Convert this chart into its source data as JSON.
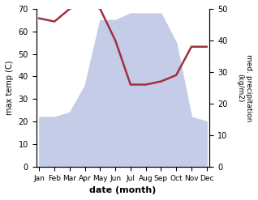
{
  "months": [
    "Jan",
    "Feb",
    "Mar",
    "Apr",
    "May",
    "Jun",
    "Jul",
    "Aug",
    "Sep",
    "Oct",
    "Nov",
    "Dec"
  ],
  "month_x": [
    0,
    1,
    2,
    3,
    4,
    5,
    6,
    7,
    8,
    9,
    10,
    11
  ],
  "precipitation": [
    22,
    22,
    24,
    36,
    65,
    65,
    68,
    68,
    68,
    55,
    22,
    20
  ],
  "temperature": [
    47,
    46,
    50,
    52,
    50,
    40,
    26,
    26,
    27,
    29,
    38,
    38
  ],
  "precip_fill_color": "#c5cce8",
  "temp_color": "#a03040",
  "left_ylabel": "max temp (C)",
  "right_ylabel": "med. precipitation\n(kg/m2)",
  "xlabel": "date (month)",
  "left_ylim": [
    0,
    70
  ],
  "right_ylim": [
    0,
    50
  ],
  "left_yticks": [
    0,
    10,
    20,
    30,
    40,
    50,
    60,
    70
  ],
  "right_yticks": [
    0,
    10,
    20,
    30,
    40,
    50
  ],
  "background_color": "#ffffff"
}
